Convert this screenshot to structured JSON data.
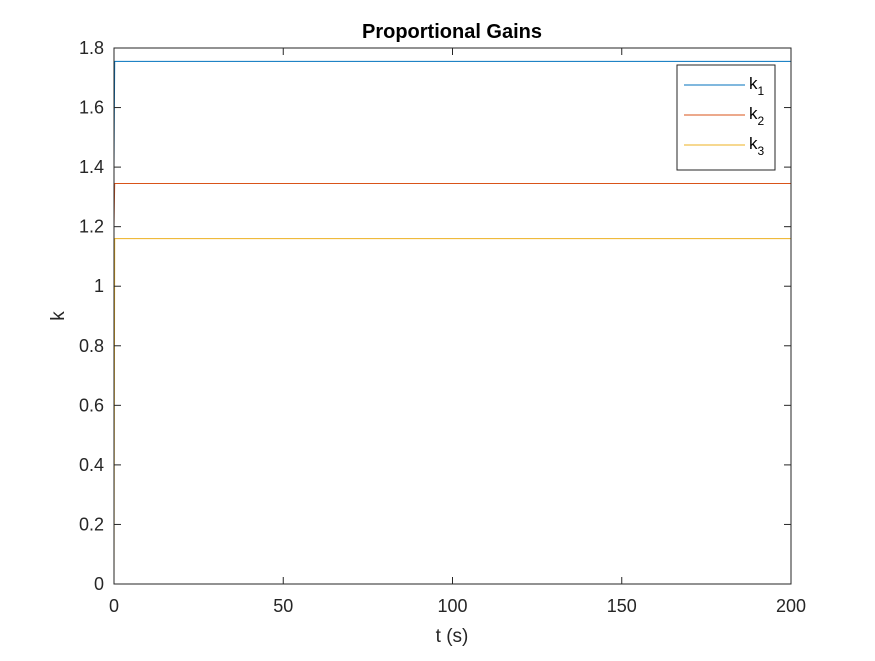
{
  "chart_data": {
    "type": "line",
    "title": "Proportional Gains",
    "xlabel": "t (s)",
    "ylabel": "k",
    "xlim": [
      0,
      200
    ],
    "ylim": [
      0,
      1.8
    ],
    "xticks": [
      0,
      50,
      100,
      150,
      200
    ],
    "xtick_labels": [
      "0",
      "50",
      "100",
      "150",
      "200"
    ],
    "yticks": [
      0,
      0.2,
      0.4,
      0.6,
      0.8,
      1.0,
      1.2,
      1.4,
      1.6,
      1.8
    ],
    "ytick_labels": [
      "0",
      "0.2",
      "0.4",
      "0.6",
      "0.8",
      "1",
      "1.2",
      "1.4",
      "1.6",
      "1.8"
    ],
    "grid": false,
    "legend_position": "top-right",
    "series": [
      {
        "base": "k",
        "sub": "1",
        "color": "#0072BD",
        "x": [
          0,
          0.2,
          200
        ],
        "y": [
          1.4,
          1.755,
          1.755
        ]
      },
      {
        "base": "k",
        "sub": "2",
        "color": "#D95319",
        "x": [
          0,
          0.2,
          200
        ],
        "y": [
          1.2,
          1.345,
          1.345
        ]
      },
      {
        "base": "k",
        "sub": "3",
        "color": "#EDB120",
        "x": [
          0,
          0.2,
          200
        ],
        "y": [
          0,
          1.16,
          1.16
        ]
      }
    ]
  }
}
